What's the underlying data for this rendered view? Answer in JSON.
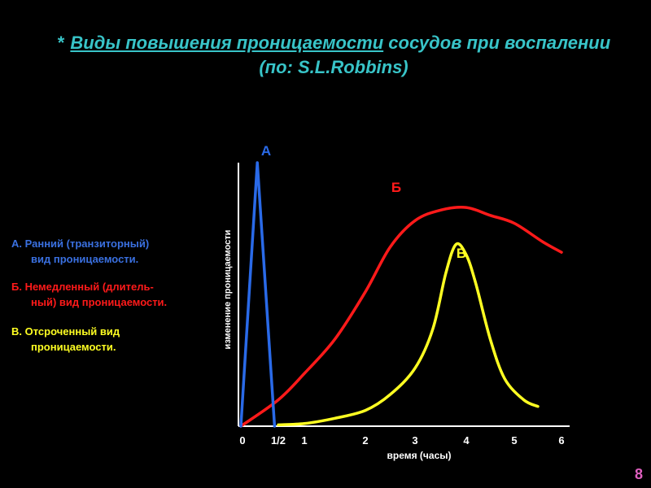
{
  "title": {
    "star": "*",
    "underlined": "Виды повышения проницаемости",
    "rest": " сосудов при воспалении",
    "line2": "(по: S.L.Robbins)"
  },
  "legend": [
    {
      "line1": "А. Ранний (транзиторный)",
      "line2": "вид проницаемости.",
      "color": "#3a70e0"
    },
    {
      "line1": "Б. Немедленный (длитель-",
      "line2": "ный) вид проницаемости.",
      "color": "#ff1a1a"
    },
    {
      "line1": "В. Отсроченный вид",
      "line2": "проницаемости.",
      "color": "#ffff22"
    }
  ],
  "page_number": "8",
  "chart_data": {
    "type": "line",
    "xlabel": "время (часы)",
    "ylabel": "изменение проницаемости",
    "x_ticks": [
      {
        "value": 0,
        "label": "0"
      },
      {
        "value": 0.5,
        "label": "1/2"
      },
      {
        "value": 1,
        "label": "1"
      },
      {
        "value": 2,
        "label": "2"
      },
      {
        "value": 3,
        "label": "3"
      },
      {
        "value": 4,
        "label": "4"
      },
      {
        "value": 5,
        "label": "5"
      },
      {
        "value": 6,
        "label": "6"
      }
    ],
    "ylim": [
      0,
      100
    ],
    "series": [
      {
        "name": "А",
        "color": "#2a6ae8",
        "smooth": false,
        "points": [
          [
            0,
            0
          ],
          [
            0.22,
            100
          ],
          [
            0.45,
            0
          ]
        ]
      },
      {
        "name": "Б",
        "color": "#ff1a1a",
        "smooth": true,
        "points": [
          [
            0,
            0
          ],
          [
            0.5,
            10
          ],
          [
            1,
            20
          ],
          [
            1.5,
            33
          ],
          [
            2,
            51
          ],
          [
            2.5,
            68
          ],
          [
            3,
            78
          ],
          [
            3.5,
            82
          ],
          [
            4,
            83
          ],
          [
            4.5,
            80
          ],
          [
            5,
            77
          ],
          [
            5.6,
            70
          ],
          [
            6,
            66
          ]
        ]
      },
      {
        "name": "В",
        "color": "#ffff22",
        "smooth": true,
        "points": [
          [
            0.5,
            0.5
          ],
          [
            1,
            1
          ],
          [
            1.5,
            3
          ],
          [
            2,
            6
          ],
          [
            2.5,
            12
          ],
          [
            3,
            22
          ],
          [
            3.35,
            37
          ],
          [
            3.6,
            58
          ],
          [
            3.8,
            69
          ],
          [
            4.0,
            65
          ],
          [
            4.2,
            54
          ],
          [
            4.5,
            33
          ],
          [
            4.8,
            18
          ],
          [
            5.2,
            10
          ],
          [
            5.5,
            7.5
          ]
        ]
      }
    ]
  }
}
